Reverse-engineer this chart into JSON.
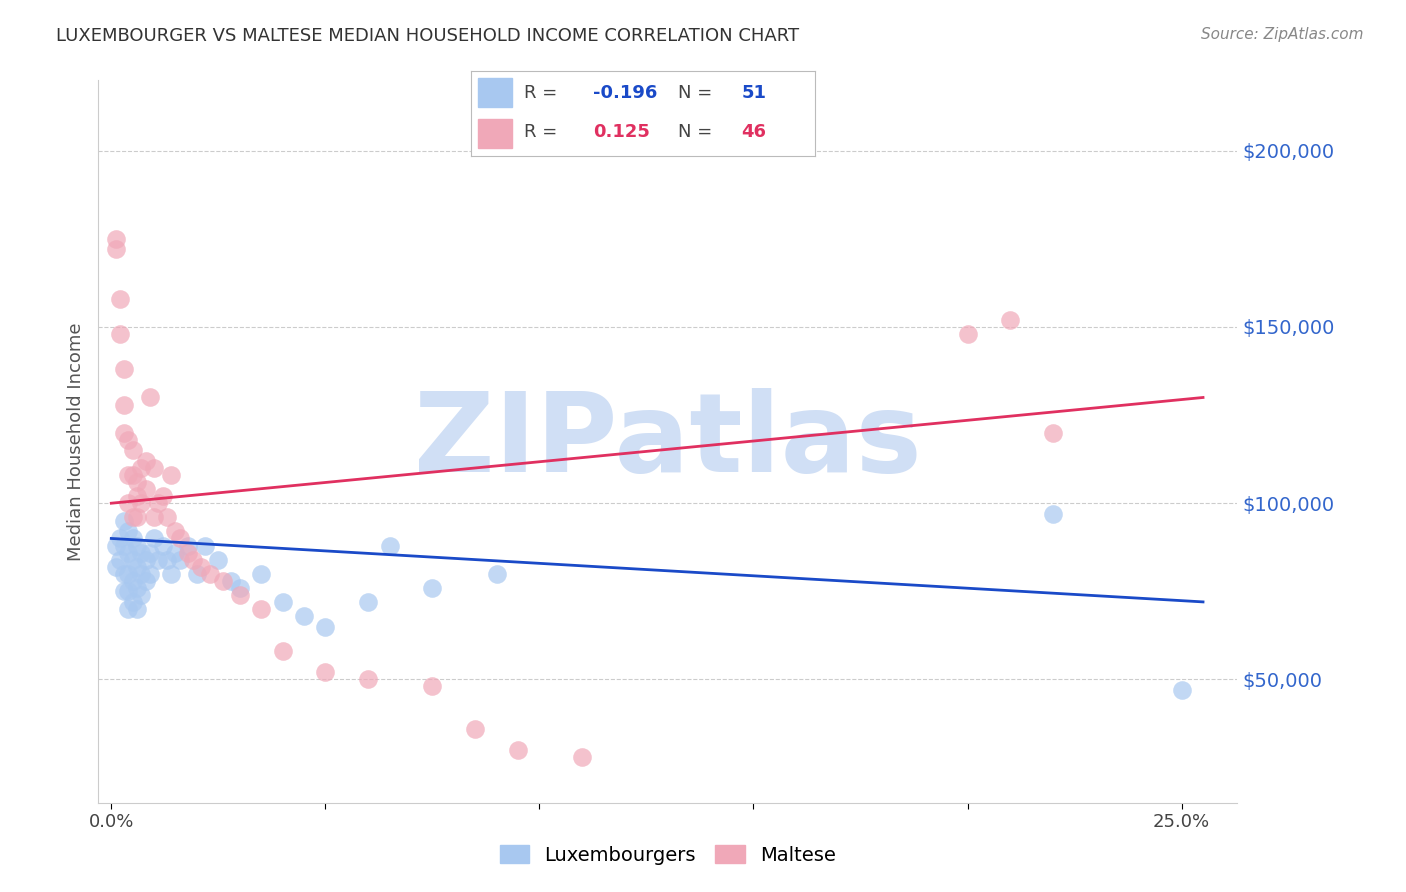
{
  "title": "LUXEMBOURGER VS MALTESE MEDIAN HOUSEHOLD INCOME CORRELATION CHART",
  "source": "Source: ZipAtlas.com",
  "ylabel": "Median Household Income",
  "yticks": [
    50000,
    100000,
    150000,
    200000
  ],
  "ytick_labels": [
    "$50,000",
    "$100,000",
    "$150,000",
    "$200,000"
  ],
  "ylim": [
    15000,
    220000
  ],
  "xlim": [
    -0.003,
    0.263
  ],
  "legend_blue_r": "-0.196",
  "legend_blue_n": "51",
  "legend_pink_r": "0.125",
  "legend_pink_n": "46",
  "blue_color": "#A8C8F0",
  "pink_color": "#F0A8B8",
  "blue_line_color": "#1A4AC8",
  "pink_line_color": "#E03060",
  "watermark": "ZIPatlas",
  "watermark_color": "#D0DFF5",
  "blue_label": "Luxembourgers",
  "pink_label": "Maltese",
  "blue_scatter_x": [
    0.001,
    0.001,
    0.002,
    0.002,
    0.003,
    0.003,
    0.003,
    0.003,
    0.004,
    0.004,
    0.004,
    0.004,
    0.004,
    0.005,
    0.005,
    0.005,
    0.005,
    0.006,
    0.006,
    0.006,
    0.006,
    0.007,
    0.007,
    0.007,
    0.008,
    0.008,
    0.009,
    0.009,
    0.01,
    0.011,
    0.012,
    0.013,
    0.014,
    0.015,
    0.016,
    0.018,
    0.02,
    0.022,
    0.025,
    0.028,
    0.03,
    0.035,
    0.04,
    0.045,
    0.05,
    0.06,
    0.065,
    0.075,
    0.09,
    0.22,
    0.25
  ],
  "blue_scatter_y": [
    88000,
    82000,
    90000,
    84000,
    95000,
    88000,
    80000,
    75000,
    92000,
    86000,
    80000,
    75000,
    70000,
    90000,
    84000,
    78000,
    72000,
    88000,
    82000,
    76000,
    70000,
    86000,
    80000,
    74000,
    84000,
    78000,
    86000,
    80000,
    90000,
    84000,
    88000,
    84000,
    80000,
    86000,
    84000,
    88000,
    80000,
    88000,
    84000,
    78000,
    76000,
    80000,
    72000,
    68000,
    65000,
    72000,
    88000,
    76000,
    80000,
    97000,
    47000
  ],
  "pink_scatter_x": [
    0.001,
    0.001,
    0.002,
    0.002,
    0.003,
    0.003,
    0.003,
    0.004,
    0.004,
    0.004,
    0.005,
    0.005,
    0.005,
    0.006,
    0.006,
    0.006,
    0.007,
    0.007,
    0.008,
    0.008,
    0.009,
    0.01,
    0.01,
    0.011,
    0.012,
    0.013,
    0.014,
    0.015,
    0.016,
    0.018,
    0.019,
    0.021,
    0.023,
    0.026,
    0.03,
    0.035,
    0.04,
    0.05,
    0.06,
    0.075,
    0.085,
    0.095,
    0.11,
    0.2,
    0.21,
    0.22
  ],
  "pink_scatter_y": [
    175000,
    172000,
    158000,
    148000,
    138000,
    128000,
    120000,
    118000,
    108000,
    100000,
    115000,
    108000,
    96000,
    106000,
    102000,
    96000,
    110000,
    100000,
    112000,
    104000,
    130000,
    110000,
    96000,
    100000,
    102000,
    96000,
    108000,
    92000,
    90000,
    86000,
    84000,
    82000,
    80000,
    78000,
    74000,
    70000,
    58000,
    52000,
    50000,
    48000,
    36000,
    30000,
    28000,
    148000,
    152000,
    120000
  ],
  "blue_trend_x": [
    0.0,
    0.255
  ],
  "blue_trend_y": [
    90000,
    72000
  ],
  "pink_trend_x": [
    0.0,
    0.255
  ],
  "pink_trend_y": [
    100000,
    130000
  ],
  "grid_color": "#CCCCCC",
  "background_color": "#FFFFFF",
  "title_color": "#333333",
  "axis_label_color": "#555555",
  "ytick_color": "#3366CC",
  "xtick_color": "#444444"
}
